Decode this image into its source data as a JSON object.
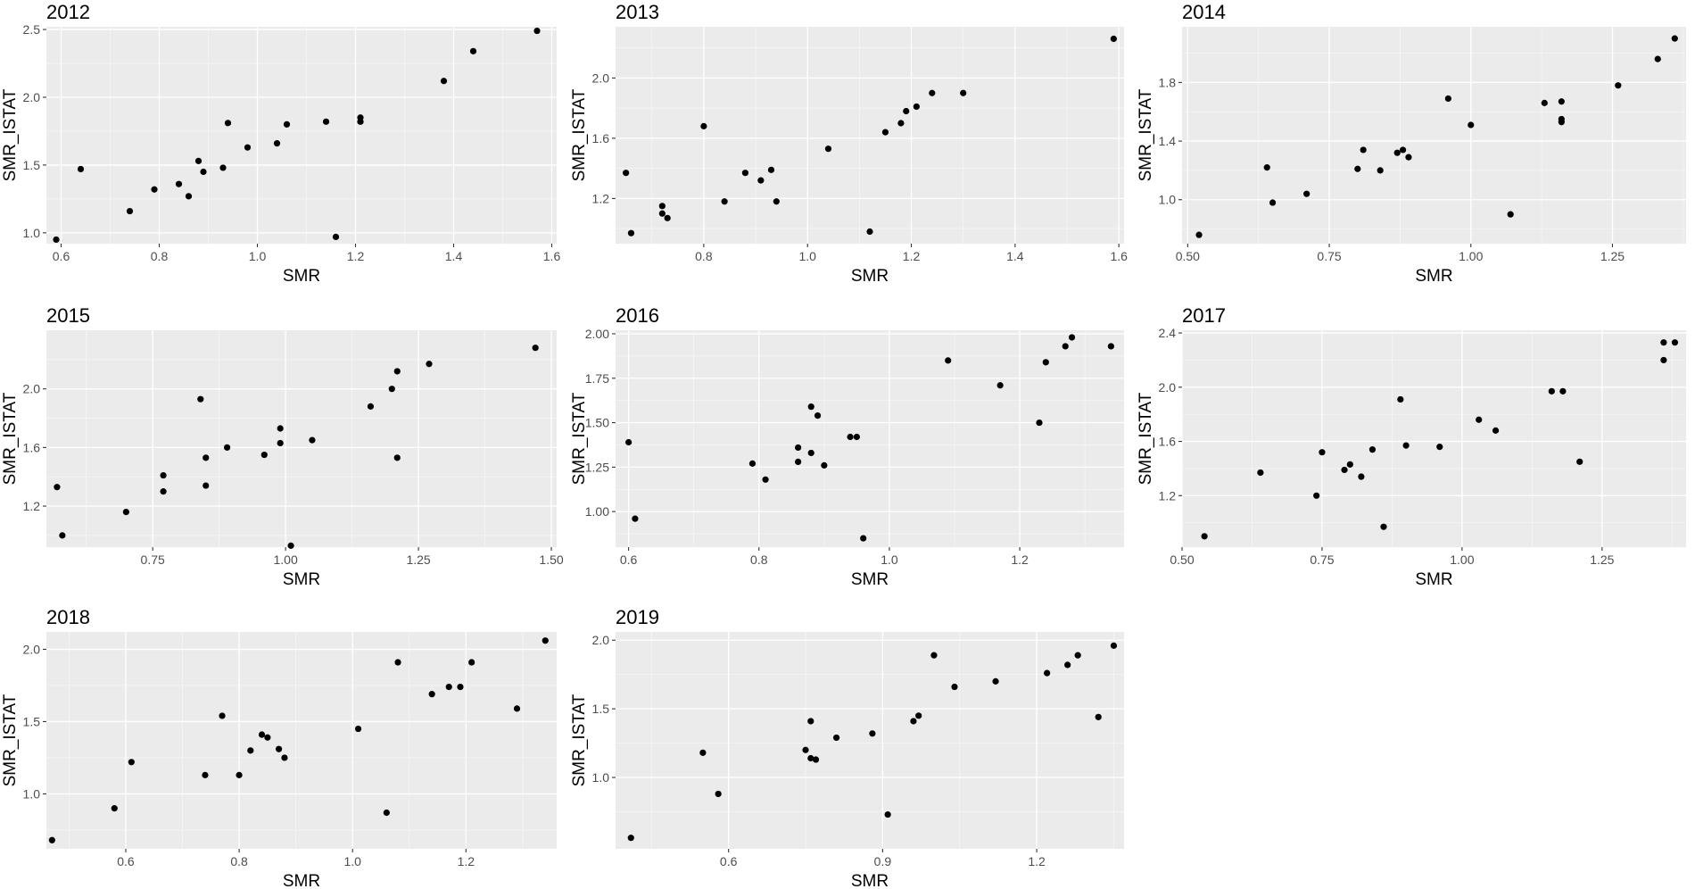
{
  "colors": {
    "panel_background": "#ebebeb",
    "grid": "#ffffff",
    "point": "#000000",
    "tick_text": "#4d4d4d"
  },
  "chart_data": [
    {
      "type": "scatter",
      "title": "2012",
      "xlabel": "SMR",
      "ylabel": "SMR_ISTAT",
      "xlim": [
        0.57,
        1.61
      ],
      "ylim": [
        0.92,
        2.52
      ],
      "xticks": [
        0.6,
        0.8,
        1.0,
        1.2,
        1.4,
        1.6
      ],
      "xtick_labels": [
        "0.6",
        "0.8",
        "1.0",
        "1.2",
        "1.4",
        "1.6"
      ],
      "yticks": [
        1.0,
        1.5,
        2.0,
        2.5
      ],
      "ytick_labels": [
        "1.0",
        "1.5",
        "2.0",
        "2.5"
      ],
      "grid": true,
      "points": [
        [
          0.59,
          0.95
        ],
        [
          0.64,
          1.47
        ],
        [
          0.74,
          1.16
        ],
        [
          0.79,
          1.32
        ],
        [
          0.84,
          1.36
        ],
        [
          0.86,
          1.27
        ],
        [
          0.88,
          1.53
        ],
        [
          0.89,
          1.45
        ],
        [
          0.93,
          1.48
        ],
        [
          0.94,
          1.81
        ],
        [
          0.98,
          1.63
        ],
        [
          1.04,
          1.66
        ],
        [
          1.06,
          1.8
        ],
        [
          1.14,
          1.82
        ],
        [
          1.16,
          0.97
        ],
        [
          1.21,
          1.82
        ],
        [
          1.21,
          1.85
        ],
        [
          1.38,
          2.12
        ],
        [
          1.44,
          2.34
        ],
        [
          1.57,
          2.49
        ]
      ]
    },
    {
      "type": "scatter",
      "title": "2013",
      "xlabel": "SMR",
      "ylabel": "SMR_ISTAT",
      "xlim": [
        0.63,
        1.61
      ],
      "ylim": [
        0.9,
        2.34
      ],
      "xticks": [
        0.8,
        1.0,
        1.2,
        1.4,
        1.6
      ],
      "xtick_labels": [
        "0.8",
        "1.0",
        "1.2",
        "1.4",
        "1.6"
      ],
      "yticks": [
        1.2,
        1.6,
        2.0
      ],
      "ytick_labels": [
        "1.2",
        "1.6",
        "2.0"
      ],
      "grid": true,
      "points": [
        [
          0.65,
          1.37
        ],
        [
          0.66,
          0.97
        ],
        [
          0.72,
          1.15
        ],
        [
          0.72,
          1.1
        ],
        [
          0.73,
          1.07
        ],
        [
          0.8,
          1.68
        ],
        [
          0.84,
          1.18
        ],
        [
          0.88,
          1.37
        ],
        [
          0.91,
          1.32
        ],
        [
          0.93,
          1.39
        ],
        [
          0.94,
          1.18
        ],
        [
          1.04,
          1.53
        ],
        [
          1.12,
          0.98
        ],
        [
          1.15,
          1.64
        ],
        [
          1.18,
          1.7
        ],
        [
          1.19,
          1.78
        ],
        [
          1.21,
          1.81
        ],
        [
          1.24,
          1.9
        ],
        [
          1.3,
          1.9
        ],
        [
          1.59,
          2.26
        ]
      ]
    },
    {
      "type": "scatter",
      "title": "2014",
      "xlabel": "SMR",
      "ylabel": "SMR_ISTAT",
      "xlim": [
        0.49,
        1.38
      ],
      "ylim": [
        0.7,
        2.18
      ],
      "xticks": [
        0.5,
        0.75,
        1.0,
        1.25
      ],
      "xtick_labels": [
        "0.50",
        "0.75",
        "1.00",
        "1.25"
      ],
      "yticks": [
        1.0,
        1.4,
        1.8
      ],
      "ytick_labels": [
        "1.0",
        "1.4",
        "1.8"
      ],
      "grid": true,
      "points": [
        [
          0.52,
          0.76
        ],
        [
          0.64,
          1.22
        ],
        [
          0.65,
          0.98
        ],
        [
          0.71,
          1.04
        ],
        [
          0.8,
          1.21
        ],
        [
          0.81,
          1.34
        ],
        [
          0.84,
          1.2
        ],
        [
          0.87,
          1.32
        ],
        [
          0.88,
          1.34
        ],
        [
          0.89,
          1.29
        ],
        [
          0.96,
          1.69
        ],
        [
          1.0,
          1.51
        ],
        [
          1.07,
          0.9
        ],
        [
          1.13,
          1.66
        ],
        [
          1.16,
          1.67
        ],
        [
          1.16,
          1.55
        ],
        [
          1.16,
          1.53
        ],
        [
          1.26,
          1.78
        ],
        [
          1.33,
          1.96
        ],
        [
          1.36,
          2.1
        ]
      ]
    },
    {
      "type": "scatter",
      "title": "2015",
      "xlabel": "SMR",
      "ylabel": "SMR_ISTAT",
      "xlim": [
        0.55,
        1.51
      ],
      "ylim": [
        0.92,
        2.4
      ],
      "xticks": [
        0.75,
        1.0,
        1.25,
        1.5
      ],
      "xtick_labels": [
        "0.75",
        "1.00",
        "1.25",
        "1.50"
      ],
      "yticks": [
        1.2,
        1.6,
        2.0
      ],
      "ytick_labels": [
        "1.2",
        "1.6",
        "2.0"
      ],
      "grid": true,
      "points": [
        [
          0.57,
          1.33
        ],
        [
          0.58,
          1.0
        ],
        [
          0.7,
          1.16
        ],
        [
          0.77,
          1.41
        ],
        [
          0.77,
          1.3
        ],
        [
          0.84,
          1.93
        ],
        [
          0.85,
          1.53
        ],
        [
          0.85,
          1.34
        ],
        [
          0.89,
          1.6
        ],
        [
          0.96,
          1.55
        ],
        [
          0.99,
          1.63
        ],
        [
          0.99,
          1.73
        ],
        [
          1.01,
          0.93
        ],
        [
          1.05,
          1.65
        ],
        [
          1.16,
          1.88
        ],
        [
          1.2,
          2.0
        ],
        [
          1.21,
          2.12
        ],
        [
          1.21,
          1.53
        ],
        [
          1.27,
          2.17
        ],
        [
          1.47,
          2.28
        ]
      ]
    },
    {
      "type": "scatter",
      "title": "2016",
      "xlabel": "SMR",
      "ylabel": "SMR_ISTAT",
      "xlim": [
        0.58,
        1.36
      ],
      "ylim": [
        0.8,
        2.02
      ],
      "xticks": [
        0.6,
        0.8,
        1.0,
        1.2
      ],
      "xtick_labels": [
        "0.6",
        "0.8",
        "1.0",
        "1.2"
      ],
      "yticks": [
        1.0,
        1.25,
        1.5,
        1.75,
        2.0
      ],
      "ytick_labels": [
        "1.00",
        "1.25",
        "1.50",
        "1.75",
        "2.00"
      ],
      "grid": true,
      "points": [
        [
          0.6,
          1.39
        ],
        [
          0.61,
          0.96
        ],
        [
          0.79,
          1.27
        ],
        [
          0.81,
          1.18
        ],
        [
          0.86,
          1.36
        ],
        [
          0.86,
          1.28
        ],
        [
          0.88,
          1.59
        ],
        [
          0.88,
          1.33
        ],
        [
          0.89,
          1.54
        ],
        [
          0.9,
          1.26
        ],
        [
          0.94,
          1.42
        ],
        [
          0.95,
          1.42
        ],
        [
          0.96,
          0.85
        ],
        [
          1.09,
          1.85
        ],
        [
          1.17,
          1.71
        ],
        [
          1.23,
          1.5
        ],
        [
          1.24,
          1.84
        ],
        [
          1.27,
          1.93
        ],
        [
          1.28,
          1.98
        ],
        [
          1.34,
          1.93
        ]
      ]
    },
    {
      "type": "scatter",
      "title": "2017",
      "xlabel": "SMR",
      "ylabel": "SMR_ISTAT",
      "xlim": [
        0.5,
        1.4
      ],
      "ylim": [
        0.82,
        2.42
      ],
      "xticks": [
        0.5,
        0.75,
        1.0,
        1.25
      ],
      "xtick_labels": [
        "0.50",
        "0.75",
        "1.00",
        "1.25"
      ],
      "yticks": [
        1.2,
        1.6,
        2.0,
        2.4
      ],
      "ytick_labels": [
        "1.2",
        "1.6",
        "2.0",
        "2.4"
      ],
      "grid": true,
      "points": [
        [
          0.54,
          0.9
        ],
        [
          0.64,
          1.37
        ],
        [
          0.74,
          1.2
        ],
        [
          0.75,
          1.52
        ],
        [
          0.79,
          1.39
        ],
        [
          0.8,
          1.43
        ],
        [
          0.82,
          1.34
        ],
        [
          0.84,
          1.54
        ],
        [
          0.86,
          0.97
        ],
        [
          0.89,
          1.91
        ],
        [
          0.9,
          1.57
        ],
        [
          0.96,
          1.56
        ],
        [
          1.03,
          1.76
        ],
        [
          1.06,
          1.68
        ],
        [
          1.16,
          1.97
        ],
        [
          1.18,
          1.97
        ],
        [
          1.21,
          1.45
        ],
        [
          1.36,
          2.33
        ],
        [
          1.36,
          2.2
        ],
        [
          1.38,
          2.33
        ]
      ]
    },
    {
      "type": "scatter",
      "title": "2018",
      "xlabel": "SMR",
      "ylabel": "SMR_ISTAT",
      "xlim": [
        0.46,
        1.36
      ],
      "ylim": [
        0.62,
        2.12
      ],
      "xticks": [
        0.6,
        0.8,
        1.0,
        1.2
      ],
      "xtick_labels": [
        "0.6",
        "0.8",
        "1.0",
        "1.2"
      ],
      "yticks": [
        1.0,
        1.5,
        2.0
      ],
      "ytick_labels": [
        "1.0",
        "1.5",
        "2.0"
      ],
      "grid": true,
      "points": [
        [
          0.47,
          0.68
        ],
        [
          0.58,
          0.9
        ],
        [
          0.61,
          1.22
        ],
        [
          0.74,
          1.13
        ],
        [
          0.77,
          1.54
        ],
        [
          0.8,
          1.13
        ],
        [
          0.82,
          1.3
        ],
        [
          0.84,
          1.41
        ],
        [
          0.85,
          1.39
        ],
        [
          0.87,
          1.31
        ],
        [
          0.88,
          1.25
        ],
        [
          1.01,
          1.45
        ],
        [
          1.06,
          0.87
        ],
        [
          1.08,
          1.91
        ],
        [
          1.14,
          1.69
        ],
        [
          1.17,
          1.74
        ],
        [
          1.19,
          1.74
        ],
        [
          1.21,
          1.91
        ],
        [
          1.29,
          1.59
        ],
        [
          1.34,
          2.06
        ]
      ]
    },
    {
      "type": "scatter",
      "title": "2019",
      "xlabel": "SMR",
      "ylabel": "SMR_ISTAT",
      "xlim": [
        0.38,
        1.37
      ],
      "ylim": [
        0.48,
        2.06
      ],
      "xticks": [
        0.6,
        0.9,
        1.2
      ],
      "xtick_labels": [
        "0.6",
        "0.9",
        "1.2"
      ],
      "yticks": [
        1.0,
        1.5,
        2.0
      ],
      "ytick_labels": [
        "1.0",
        "1.5",
        "2.0"
      ],
      "grid": true,
      "points": [
        [
          0.41,
          0.56
        ],
        [
          0.55,
          1.18
        ],
        [
          0.58,
          0.88
        ],
        [
          0.75,
          1.2
        ],
        [
          0.76,
          1.41
        ],
        [
          0.76,
          1.14
        ],
        [
          0.77,
          1.13
        ],
        [
          0.81,
          1.29
        ],
        [
          0.88,
          1.32
        ],
        [
          0.91,
          0.73
        ],
        [
          0.96,
          1.41
        ],
        [
          0.97,
          1.45
        ],
        [
          1.0,
          1.89
        ],
        [
          1.04,
          1.66
        ],
        [
          1.12,
          1.7
        ],
        [
          1.22,
          1.76
        ],
        [
          1.26,
          1.82
        ],
        [
          1.28,
          1.89
        ],
        [
          1.32,
          1.44
        ],
        [
          1.35,
          1.96
        ]
      ]
    }
  ]
}
